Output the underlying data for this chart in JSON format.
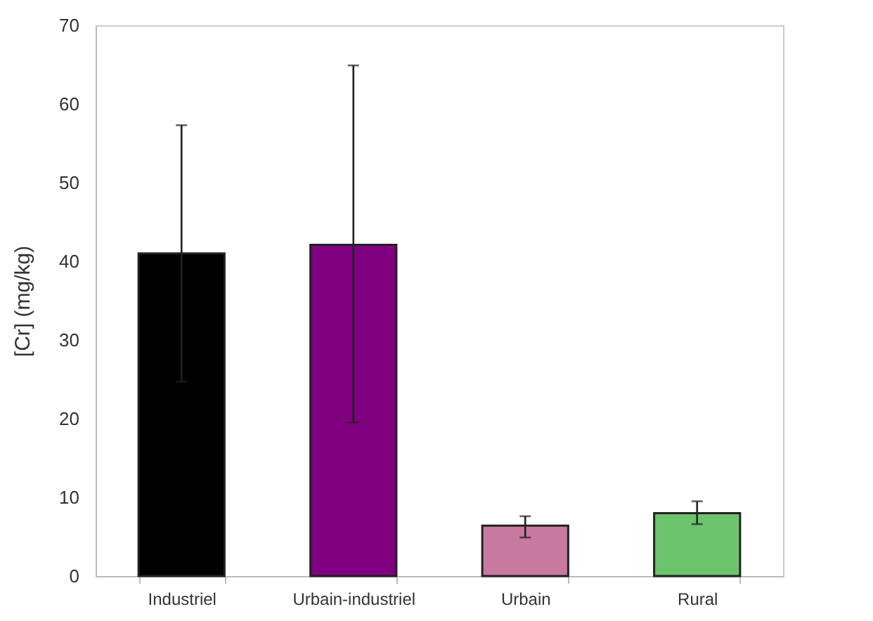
{
  "chart_data": {
    "type": "bar",
    "ylabel": "[Cr] (mg/kg)",
    "categories": [
      "Industriel",
      "Urbain-industriel",
      "Urbain",
      "Rural"
    ],
    "values": [
      41,
      42.1,
      6.4,
      8.0
    ],
    "colors": [
      "#000000",
      "#800080",
      "#c8799f",
      "#6cc46c"
    ],
    "errors": [
      [
        24.7,
        57.3
      ],
      [
        19.5,
        64.9
      ],
      [
        4.9,
        7.6
      ],
      [
        6.6,
        9.5
      ]
    ],
    "ylim": [
      0,
      70
    ],
    "yticks": [
      0,
      10,
      20,
      30,
      40,
      50,
      60,
      70
    ],
    "grid": false
  }
}
